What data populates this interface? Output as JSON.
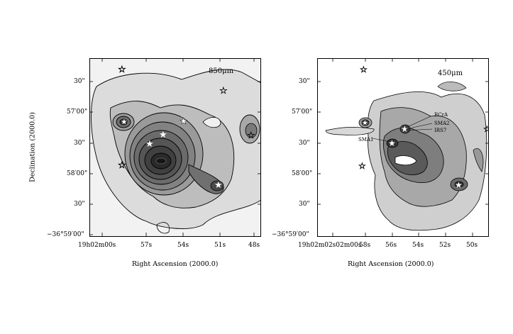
{
  "left_panel": {
    "wavelength": "850μm",
    "y_ticks": [
      "30\"",
      "57′00\"",
      "30\"",
      "58′00\"",
      "30\"",
      "−36°59′00\""
    ],
    "x_ticks": [
      "19h02m00s",
      "57s",
      "54s",
      "51s",
      "48s"
    ],
    "ylabel": "Declination (2000.0)",
    "xlabel": "Right Ascension (2000.0)"
  },
  "right_panel": {
    "wavelength": "450μm",
    "y_ticks": [
      "30\"",
      "57′00\"",
      "30\"",
      "58′00\"",
      "30\"",
      "−36°59′00\""
    ],
    "x_ticks": [
      "19h02m02s02m00s",
      "58s",
      "56s",
      "54s",
      "52s",
      "50s"
    ],
    "xlabel": "Right Ascension (2000.0)",
    "sources": [
      "RCrA",
      "SMA2",
      "IRS7",
      "SMA1"
    ]
  },
  "colors": {
    "contour": "#000000",
    "star_filled": "#ffffff"
  }
}
